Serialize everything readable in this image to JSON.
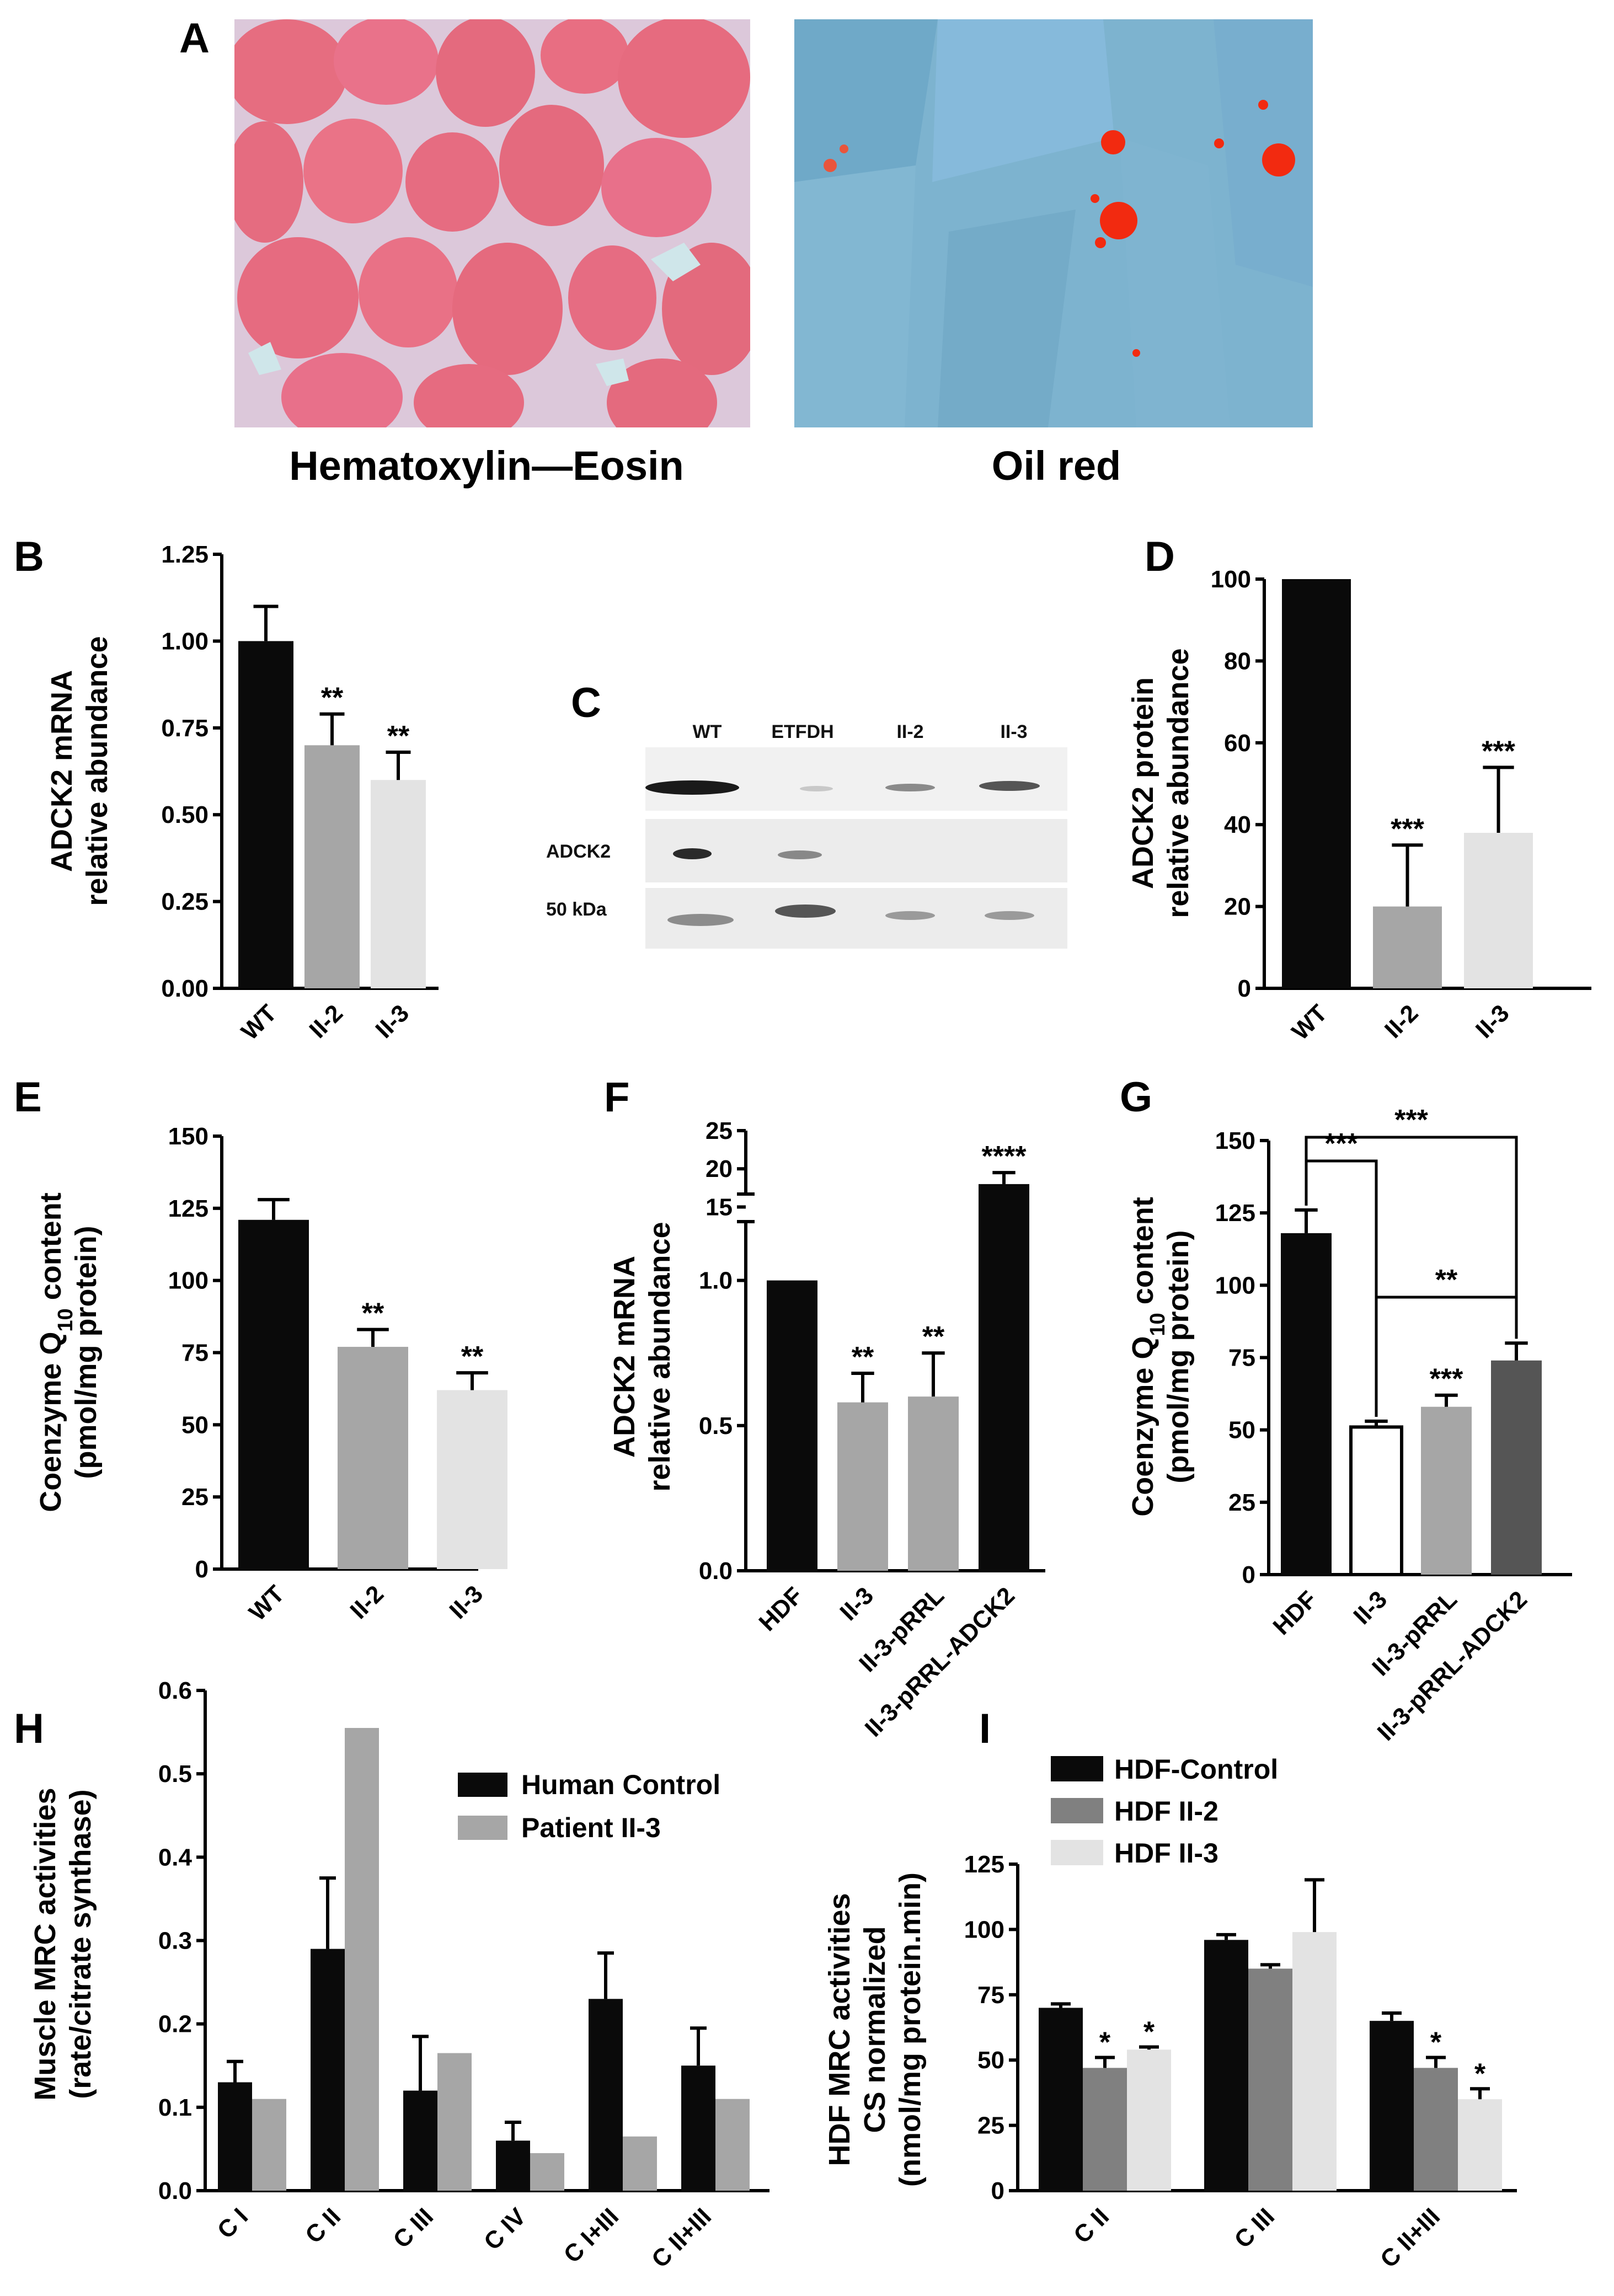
{
  "colors": {
    "black": "#0a0a0a",
    "darkgray": "#808080",
    "midgray": "#a6a6a6",
    "lightgray": "#e3e3e3",
    "darkbar": "#555555",
    "he_pink": "#e7697e",
    "he_bg": "#d9c7d8",
    "oil_blue": "#7ab2cf",
    "oil_red": "#f22a10"
  },
  "panels": {
    "A": "A",
    "B": "B",
    "C": "C",
    "D": "D",
    "E": "E",
    "F": "F",
    "G": "G",
    "H": "H",
    "I": "I"
  },
  "captions": {
    "he": "Hematoxylin—Eosin",
    "oil": "Oil red"
  },
  "western": {
    "lanes": [
      "WT",
      "ETFDH",
      "II-2",
      "II-3"
    ],
    "rows": [
      "ADCK2",
      "50 kDa"
    ]
  },
  "chart_data": [
    {
      "panel": "B",
      "type": "bar",
      "ylabel": "ADCK2 mRNA relative abundance",
      "categories": [
        "WT",
        "II-2",
        "II-3"
      ],
      "values": [
        1.0,
        0.7,
        0.6
      ],
      "errors": [
        0.1,
        0.09,
        0.08
      ],
      "significance": [
        "",
        "**",
        "**"
      ],
      "colors": [
        "black",
        "midgray",
        "lightgray"
      ],
      "ylim": [
        0,
        1.25
      ],
      "yticks": [
        "0.00",
        "0.25",
        "0.50",
        "0.75",
        "1.00",
        "1.25"
      ]
    },
    {
      "panel": "D",
      "type": "bar",
      "ylabel": "ADCK2 protein relative abundance",
      "categories": [
        "WT",
        "II-2",
        "II-3"
      ],
      "values": [
        100,
        20,
        38
      ],
      "errors": [
        0,
        15,
        16
      ],
      "significance": [
        "",
        "***",
        "***"
      ],
      "colors": [
        "black",
        "midgray",
        "lightgray"
      ],
      "ylim": [
        0,
        100
      ],
      "yticks": [
        "0",
        "20",
        "40",
        "60",
        "80",
        "100"
      ]
    },
    {
      "panel": "E",
      "type": "bar",
      "ylabel": "Coenzyme Q10 content (pmol/mg protein)",
      "categories": [
        "WT",
        "II-2",
        "II-3"
      ],
      "values": [
        121,
        77,
        62
      ],
      "errors": [
        7,
        6,
        6
      ],
      "significance": [
        "",
        "**",
        "**"
      ],
      "colors": [
        "black",
        "midgray",
        "lightgray"
      ],
      "ylim": [
        0,
        150
      ],
      "yticks": [
        "0",
        "25",
        "50",
        "75",
        "100",
        "125",
        "150"
      ]
    },
    {
      "panel": "F",
      "type": "bar",
      "ylabel": "ADCK2 mRNA relative abundance",
      "categories": [
        "HDF",
        "II-3",
        "II-3-pRRL",
        "II-3-pRRL-ADCK2"
      ],
      "values": [
        1.0,
        0.58,
        0.6,
        18
      ],
      "errors": [
        0,
        0.1,
        0.15,
        1.5
      ],
      "significance": [
        "",
        "**",
        "**",
        "****"
      ],
      "colors": [
        "black",
        "midgray",
        "midgray",
        "black"
      ],
      "ylim_lower": [
        0,
        1.25
      ],
      "ylim_upper": [
        12,
        25
      ],
      "yticks_lower": [
        "0.0",
        "0.5",
        "1.0"
      ],
      "yticks_upper": [
        "15",
        "20",
        "25"
      ]
    },
    {
      "panel": "G",
      "type": "bar",
      "ylabel": "Coenzyme Q10 content (pmol/mg protein)",
      "categories": [
        "HDF",
        "II-3",
        "II-3-pRRL",
        "II-3-pRRL-ADCK2"
      ],
      "values": [
        118,
        51,
        58,
        74
      ],
      "errors": [
        8,
        2,
        4,
        6
      ],
      "significance": [
        "",
        "",
        "***",
        ""
      ],
      "brackets": [
        {
          "from": 0,
          "to": 1,
          "label": "***"
        },
        {
          "from": 0,
          "to": 3,
          "label": "***"
        },
        {
          "from": 1,
          "to": 3,
          "label": "**"
        }
      ],
      "colors": [
        "black",
        "white",
        "midgray",
        "darkbar"
      ],
      "ylim": [
        0,
        150
      ],
      "yticks": [
        "0",
        "25",
        "50",
        "75",
        "100",
        "125",
        "150"
      ]
    },
    {
      "panel": "H",
      "type": "bar",
      "ylabel": "Muscle MRC activities (rate/citrate synthase)",
      "categories": [
        "C I",
        "C II",
        "C III",
        "C IV",
        "C I+III",
        "C II+III"
      ],
      "series": [
        {
          "name": "Human Control",
          "color": "black",
          "values": [
            0.13,
            0.29,
            0.12,
            0.06,
            0.23,
            0.15
          ],
          "errors": [
            0.025,
            0.085,
            0.065,
            0.022,
            0.055,
            0.045
          ]
        },
        {
          "name": "Patient II-3",
          "color": "midgray",
          "values": [
            0.11,
            0.555,
            0.165,
            0.045,
            0.065,
            0.11
          ],
          "errors": [
            0,
            0,
            0,
            0,
            0,
            0
          ]
        }
      ],
      "ylim": [
        0,
        0.6
      ],
      "yticks": [
        "0.0",
        "0.1",
        "0.2",
        "0.3",
        "0.4",
        "0.5",
        "0.6"
      ]
    },
    {
      "panel": "I",
      "type": "bar",
      "ylabel": "HDF MRC activities CS normalized (nmol/mg protein.min)",
      "categories": [
        "C II",
        "C III",
        "C II+III"
      ],
      "series": [
        {
          "name": "HDF-Control",
          "color": "black",
          "values": [
            70,
            96,
            65
          ],
          "errors": [
            1.5,
            2,
            3
          ],
          "significance": [
            "",
            "",
            ""
          ]
        },
        {
          "name": "HDF II-2",
          "color": "darkgray",
          "values": [
            47,
            85,
            47
          ],
          "errors": [
            4,
            1.5,
            4
          ],
          "significance": [
            "*",
            "",
            "*"
          ]
        },
        {
          "name": "HDF II-3",
          "color": "lightgray",
          "values": [
            54,
            99,
            35
          ],
          "errors": [
            1,
            20,
            4
          ],
          "significance": [
            "*",
            "",
            "*"
          ]
        }
      ],
      "ylim": [
        0,
        125
      ],
      "yticks": [
        "0",
        "25",
        "50",
        "75",
        "100",
        "125"
      ]
    }
  ]
}
